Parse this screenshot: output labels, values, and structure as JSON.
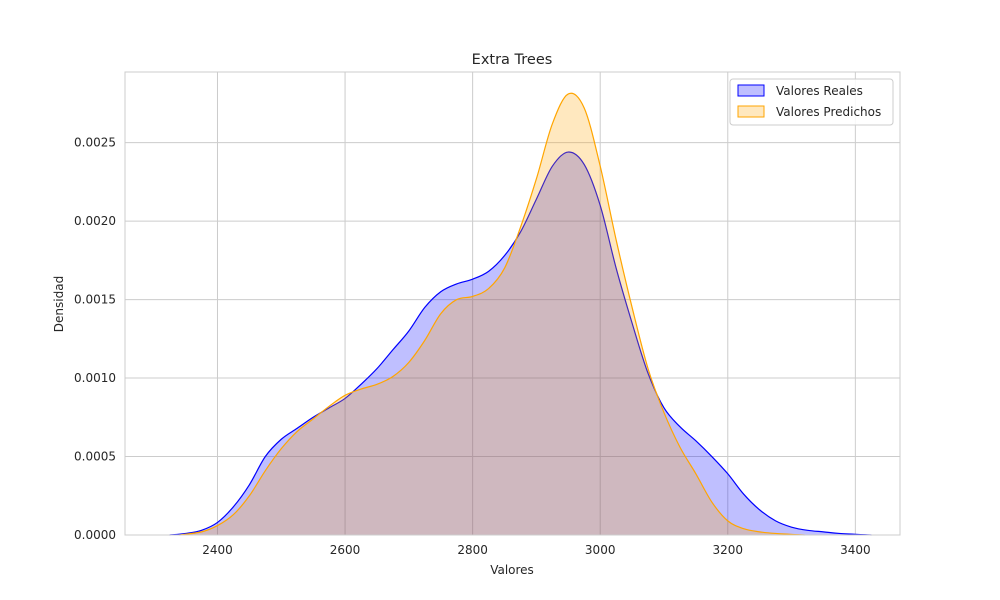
{
  "chart_data": {
    "type": "area",
    "title": "Extra Trees",
    "xlabel": "Valores",
    "ylabel": "Densidad",
    "xlim": [
      2255,
      3470
    ],
    "ylim": [
      0,
      0.00295
    ],
    "xticks": [
      "2400",
      "2600",
      "2800",
      "3000",
      "3200",
      "3400"
    ],
    "yticks": [
      "0.0000",
      "0.0005",
      "0.0010",
      "0.0015",
      "0.0020",
      "0.0025"
    ],
    "grid": true,
    "legend_position": "top-right",
    "series": [
      {
        "name": "Valores Reales",
        "color": "#0000ff",
        "points": [
          [
            2325,
            0
          ],
          [
            2350,
            1e-05
          ],
          [
            2375,
            3e-05
          ],
          [
            2400,
            8e-05
          ],
          [
            2425,
            0.00018
          ],
          [
            2450,
            0.00032
          ],
          [
            2475,
            0.0005
          ],
          [
            2500,
            0.00061
          ],
          [
            2525,
            0.00068
          ],
          [
            2550,
            0.00075
          ],
          [
            2575,
            0.00081
          ],
          [
            2600,
            0.00087
          ],
          [
            2625,
            0.00096
          ],
          [
            2650,
            0.00106
          ],
          [
            2675,
            0.00118
          ],
          [
            2700,
            0.0013
          ],
          [
            2725,
            0.00145
          ],
          [
            2750,
            0.00155
          ],
          [
            2775,
            0.0016
          ],
          [
            2800,
            0.00163
          ],
          [
            2825,
            0.00168
          ],
          [
            2850,
            0.00178
          ],
          [
            2875,
            0.00193
          ],
          [
            2900,
            0.00214
          ],
          [
            2925,
            0.00235
          ],
          [
            2950,
            0.00244
          ],
          [
            2975,
            0.00236
          ],
          [
            3000,
            0.0021
          ],
          [
            3025,
            0.0017
          ],
          [
            3050,
            0.00135
          ],
          [
            3075,
            0.00103
          ],
          [
            3100,
            0.00081
          ],
          [
            3125,
            0.00069
          ],
          [
            3150,
            0.0006
          ],
          [
            3175,
            0.0005
          ],
          [
            3200,
            0.00039
          ],
          [
            3225,
            0.00026
          ],
          [
            3250,
            0.00016
          ],
          [
            3275,
            9e-05
          ],
          [
            3300,
            5e-05
          ],
          [
            3325,
            3e-05
          ],
          [
            3350,
            2e-05
          ],
          [
            3375,
            1e-05
          ],
          [
            3425,
            0
          ]
        ]
      },
      {
        "name": "Valores Predichos",
        "color": "#ffa500",
        "points": [
          [
            2340,
            0
          ],
          [
            2375,
            2e-05
          ],
          [
            2400,
            6e-05
          ],
          [
            2425,
            0.00013
          ],
          [
            2450,
            0.00025
          ],
          [
            2475,
            0.00041
          ],
          [
            2500,
            0.00055
          ],
          [
            2525,
            0.00066
          ],
          [
            2550,
            0.00074
          ],
          [
            2575,
            0.00082
          ],
          [
            2600,
            0.00089
          ],
          [
            2625,
            0.00093
          ],
          [
            2650,
            0.00096
          ],
          [
            2675,
            0.00101
          ],
          [
            2700,
            0.0011
          ],
          [
            2725,
            0.00124
          ],
          [
            2750,
            0.00141
          ],
          [
            2775,
            0.0015
          ],
          [
            2800,
            0.00152
          ],
          [
            2825,
            0.00157
          ],
          [
            2850,
            0.0017
          ],
          [
            2875,
            0.00196
          ],
          [
            2900,
            0.00227
          ],
          [
            2925,
            0.00262
          ],
          [
            2950,
            0.00281
          ],
          [
            2975,
            0.00272
          ],
          [
            3000,
            0.00235
          ],
          [
            3025,
            0.00188
          ],
          [
            3050,
            0.00145
          ],
          [
            3075,
            0.00106
          ],
          [
            3100,
            0.00078
          ],
          [
            3125,
            0.00056
          ],
          [
            3150,
            0.00039
          ],
          [
            3175,
            0.00021
          ],
          [
            3200,
            9e-05
          ],
          [
            3225,
            4e-05
          ],
          [
            3250,
            2e-05
          ],
          [
            3275,
            1e-05
          ],
          [
            3320,
            0
          ]
        ]
      }
    ]
  }
}
